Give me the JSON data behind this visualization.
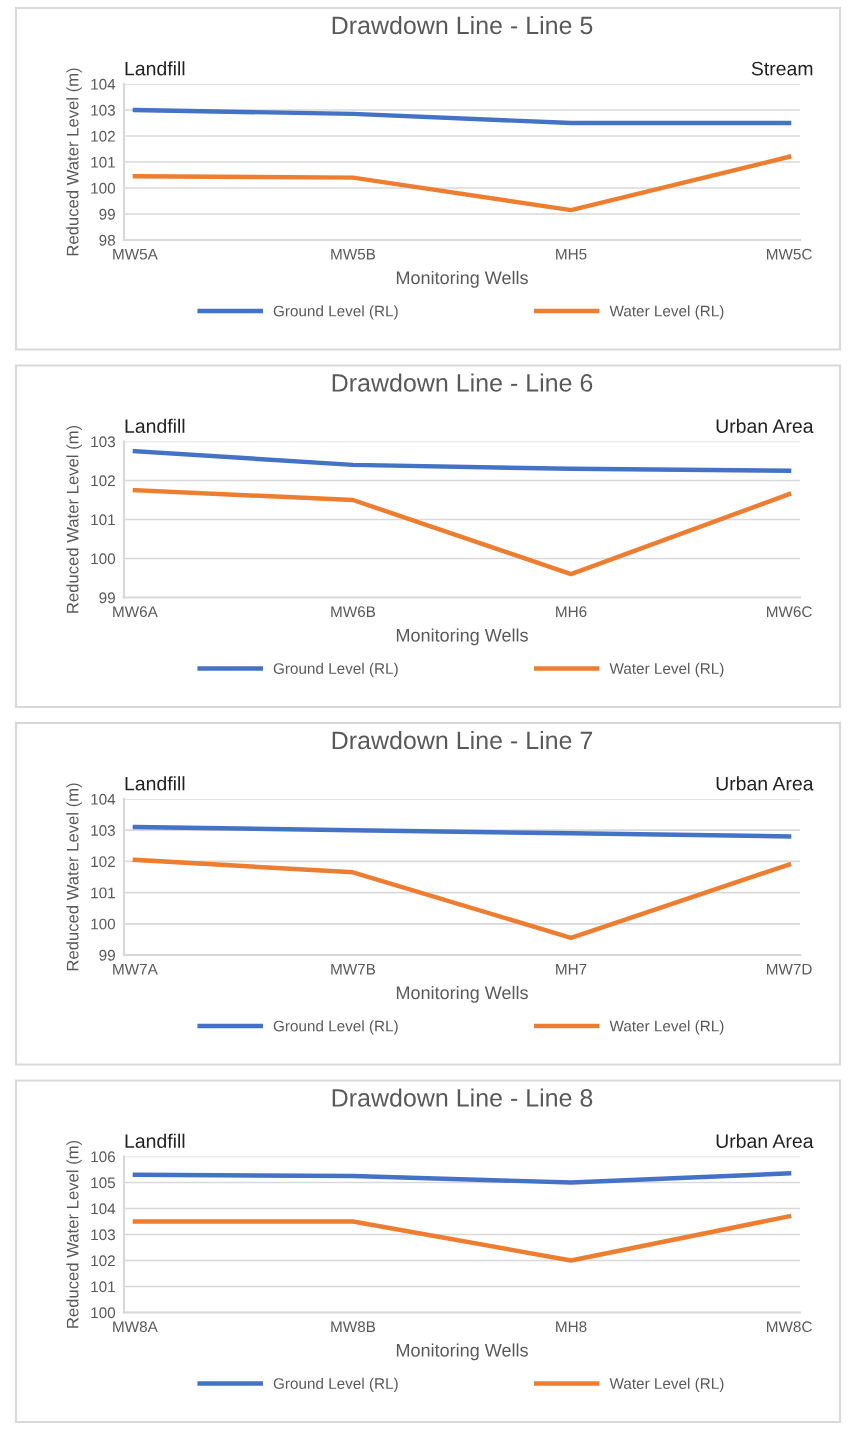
{
  "chart_data": [
    {
      "type": "line",
      "title": "Drawdown Line - Line 5",
      "xlabel": "Monitoring Wells",
      "ylabel": "Reduced Water Level (m)",
      "categories": [
        "MW5A",
        "MW5B",
        "MH5",
        "MW5C"
      ],
      "ylim": [
        98,
        104
      ],
      "yticks": [
        98,
        99,
        100,
        101,
        102,
        103,
        104
      ],
      "grid": "y",
      "legend": "bottom",
      "annotations": [
        "Landfill",
        "Stream"
      ],
      "series": [
        {
          "name": "Ground Level (RL)",
          "color": "#4472c4",
          "values": [
            103.0,
            102.85,
            102.5,
            102.5
          ]
        },
        {
          "name": "Water Level (RL)",
          "color": "#ed7d31",
          "values": [
            100.45,
            100.4,
            99.15,
            101.2
          ]
        }
      ]
    },
    {
      "type": "line",
      "title": "Drawdown Line - Line 6",
      "xlabel": "Monitoring Wells",
      "ylabel": "Reduced Water Level (m)",
      "categories": [
        "MW6A",
        "MW6B",
        "MH6",
        "MW6C"
      ],
      "ylim": [
        99,
        103
      ],
      "yticks": [
        99,
        100,
        101,
        102,
        103
      ],
      "grid": "y",
      "legend": "bottom",
      "annotations": [
        "Landfill",
        "Urban Area"
      ],
      "series": [
        {
          "name": "Ground Level (RL)",
          "color": "#4472c4",
          "values": [
            102.75,
            102.4,
            102.3,
            102.25
          ]
        },
        {
          "name": "Water Level (RL)",
          "color": "#ed7d31",
          "values": [
            101.75,
            101.5,
            99.6,
            101.65
          ]
        }
      ]
    },
    {
      "type": "line",
      "title": "Drawdown Line - Line 7",
      "xlabel": "Monitoring Wells",
      "ylabel": "Reduced Water Level (m)",
      "categories": [
        "MW7A",
        "MW7B",
        "MH7",
        "MW7D"
      ],
      "ylim": [
        99,
        104
      ],
      "yticks": [
        99,
        100,
        101,
        102,
        103,
        104
      ],
      "grid": "y",
      "legend": "bottom",
      "annotations": [
        "Landfill",
        "Urban Area"
      ],
      "series": [
        {
          "name": "Ground Level (RL)",
          "color": "#4472c4",
          "values": [
            103.1,
            103.0,
            102.9,
            102.8
          ]
        },
        {
          "name": "Water Level (RL)",
          "color": "#ed7d31",
          "values": [
            102.05,
            101.65,
            99.55,
            101.9
          ]
        }
      ]
    },
    {
      "type": "line",
      "title": "Drawdown Line - Line 8",
      "xlabel": "Monitoring Wells",
      "ylabel": "Reduced Water Level (m)",
      "categories": [
        "MW8A",
        "MW8B",
        "MH8",
        "MW8C"
      ],
      "ylim": [
        100,
        106
      ],
      "yticks": [
        100,
        101,
        102,
        103,
        104,
        105,
        106
      ],
      "grid": "y",
      "legend": "bottom",
      "annotations": [
        "Landfill",
        "Urban Area"
      ],
      "series": [
        {
          "name": "Ground Level (RL)",
          "color": "#4472c4",
          "values": [
            105.3,
            105.25,
            105.0,
            105.35
          ]
        },
        {
          "name": "Water Level (RL)",
          "color": "#ed7d31",
          "values": [
            103.5,
            103.5,
            102.0,
            103.7
          ]
        }
      ]
    }
  ]
}
